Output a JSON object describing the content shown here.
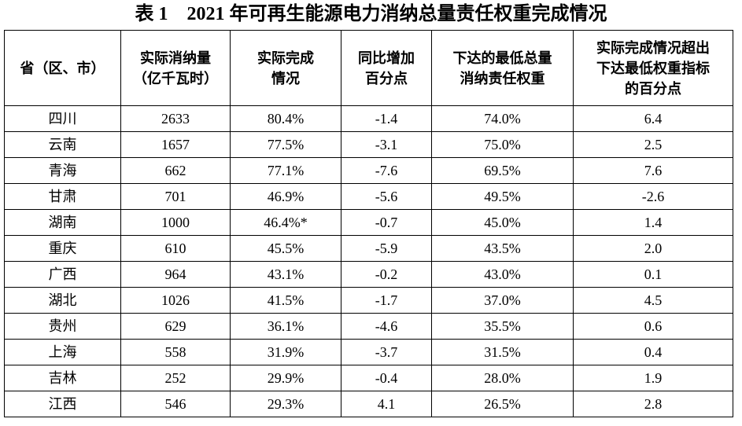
{
  "title": "表 1　2021 年可再生能源电力消纳总量责任权重完成情况",
  "table": {
    "headers": [
      [
        "省（区、市）"
      ],
      [
        "实际消纳量",
        "（亿千瓦时）"
      ],
      [
        "实际完成",
        "情况"
      ],
      [
        "同比增加",
        "百分点"
      ],
      [
        "下达的最低总量",
        "消纳责任权重"
      ],
      [
        "实际完成情况超出",
        "下达最低权重指标",
        "的百分点"
      ]
    ],
    "rows": [
      [
        "四川",
        "2633",
        "80.4%",
        "-1.4",
        "74.0%",
        "6.4"
      ],
      [
        "云南",
        "1657",
        "77.5%",
        "-3.1",
        "75.0%",
        "2.5"
      ],
      [
        "青海",
        "662",
        "77.1%",
        "-7.6",
        "69.5%",
        "7.6"
      ],
      [
        "甘肃",
        "701",
        "46.9%",
        "-5.6",
        "49.5%",
        "-2.6"
      ],
      [
        "湖南",
        "1000",
        "46.4%*",
        "-0.7",
        "45.0%",
        "1.4"
      ],
      [
        "重庆",
        "610",
        "45.5%",
        "-5.9",
        "43.5%",
        "2.0"
      ],
      [
        "广西",
        "964",
        "43.1%",
        "-0.2",
        "43.0%",
        "0.1"
      ],
      [
        "湖北",
        "1026",
        "41.5%",
        "-1.7",
        "37.0%",
        "4.5"
      ],
      [
        "贵州",
        "629",
        "36.1%",
        "-4.6",
        "35.5%",
        "0.6"
      ],
      [
        "上海",
        "558",
        "31.9%",
        "-3.7",
        "31.5%",
        "0.4"
      ],
      [
        "吉林",
        "252",
        "29.9%",
        "-0.4",
        "28.0%",
        "1.9"
      ],
      [
        "江西",
        "546",
        "29.3%",
        "4.1",
        "26.5%",
        "2.8"
      ]
    ]
  }
}
